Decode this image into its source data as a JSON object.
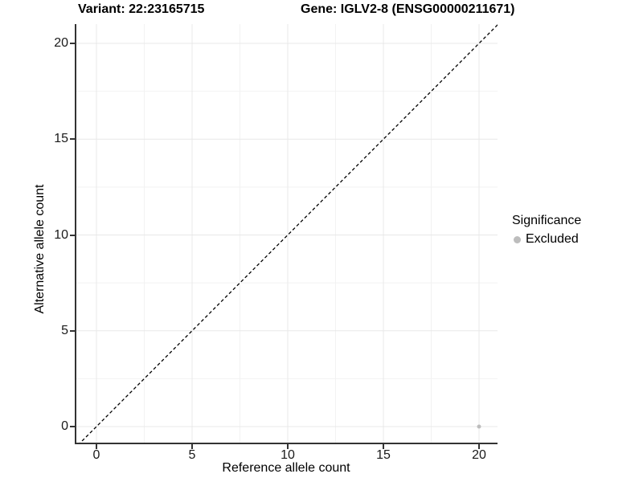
{
  "chart_data": {
    "type": "scatter",
    "title_left": "Variant: 22:23165715",
    "title_right": "Gene: IGLV2-8 (ENSG00000211671)",
    "xlabel": "Reference allele count",
    "ylabel": "Alternative allele count",
    "xlim": [
      -1.1,
      21
    ],
    "ylim": [
      -1.1,
      21
    ],
    "x_ticks": [
      0,
      5,
      10,
      15,
      20
    ],
    "y_ticks": [
      0,
      5,
      10,
      15,
      20
    ],
    "x_minor_ticks": [
      2.5,
      7.5,
      12.5,
      17.5
    ],
    "y_minor_ticks": [
      2.5,
      7.5,
      12.5,
      17.5
    ],
    "grid": "major+minor",
    "reference_line": {
      "slope": 1,
      "intercept": 0,
      "style": "dashed",
      "color": "#000000"
    },
    "series": [
      {
        "name": "Excluded",
        "color": "#bdbdbd",
        "points": [
          {
            "x": 20,
            "y": 0
          }
        ]
      }
    ],
    "legend": {
      "title": "Significance",
      "position": "right",
      "entries": [
        {
          "label": "Excluded",
          "color": "#bdbdbd"
        }
      ]
    }
  },
  "colors": {
    "background": "#ffffff",
    "grid_major": "#e8e8e8",
    "grid_minor": "#f2f2f2",
    "axis_line": "#333333",
    "axis_text": "#1a1a1a",
    "title_text": "#000000"
  }
}
